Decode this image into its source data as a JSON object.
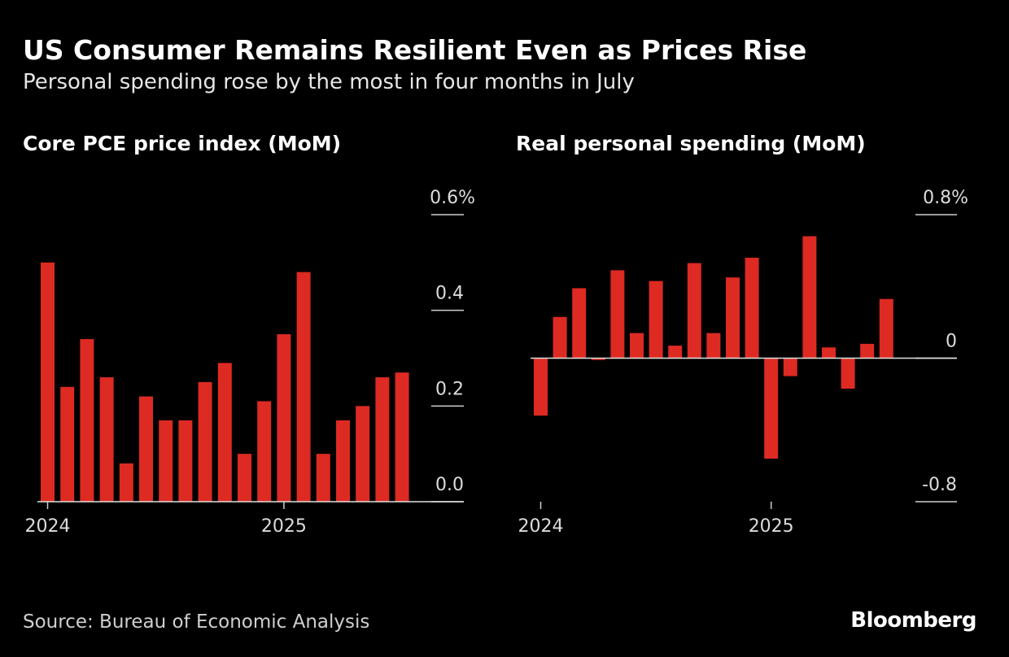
{
  "title": "US Consumer Remains Resilient Even as Prices Rise",
  "subtitle": "Personal spending rose by the most in four months in July",
  "source": "Source: Bureau of Economic Analysis",
  "logo": "Bloomberg",
  "colors": {
    "bar": "#dd2a22",
    "background": "#000000",
    "text": "#ffffff"
  },
  "chart_data": [
    {
      "type": "bar",
      "title": "Core PCE price index (MoM)",
      "unit": "%",
      "x": [
        "2024-01",
        "2024-02",
        "2024-03",
        "2024-04",
        "2024-05",
        "2024-06",
        "2024-07",
        "2024-08",
        "2024-09",
        "2024-10",
        "2024-11",
        "2024-12",
        "2025-01",
        "2025-02",
        "2025-03",
        "2025-04",
        "2025-05",
        "2025-06",
        "2025-07"
      ],
      "values": [
        0.5,
        0.24,
        0.34,
        0.26,
        0.08,
        0.22,
        0.17,
        0.17,
        0.25,
        0.29,
        0.1,
        0.21,
        0.35,
        0.48,
        0.1,
        0.17,
        0.2,
        0.26,
        0.27
      ],
      "ylim": [
        0,
        0.6
      ],
      "yticks": [
        "0.6%",
        "0.4",
        "0.2",
        "0.0"
      ],
      "ytick_values": [
        0.6,
        0.4,
        0.2,
        0.0
      ],
      "xticks": [
        "2024",
        "2025"
      ],
      "xtick_index": [
        0,
        12
      ]
    },
    {
      "type": "bar",
      "title": "Real personal spending (MoM)",
      "unit": "%",
      "x": [
        "2024-01",
        "2024-02",
        "2024-03",
        "2024-04",
        "2024-05",
        "2024-06",
        "2024-07",
        "2024-08",
        "2024-09",
        "2024-10",
        "2024-11",
        "2024-12",
        "2025-01",
        "2025-02",
        "2025-03",
        "2025-04",
        "2025-05",
        "2025-06",
        "2025-07"
      ],
      "values": [
        -0.32,
        0.23,
        0.39,
        -0.01,
        0.49,
        0.14,
        0.43,
        0.07,
        0.53,
        0.14,
        0.45,
        0.56,
        -0.56,
        -0.1,
        0.68,
        0.06,
        -0.17,
        0.08,
        0.33
      ],
      "ylim": [
        -0.8,
        0.8
      ],
      "yticks": [
        "0.8%",
        "0",
        "-0.8"
      ],
      "ytick_values": [
        0.8,
        0,
        -0.8
      ],
      "xticks": [
        "2024",
        "2025"
      ],
      "xtick_index": [
        0,
        12
      ]
    }
  ]
}
